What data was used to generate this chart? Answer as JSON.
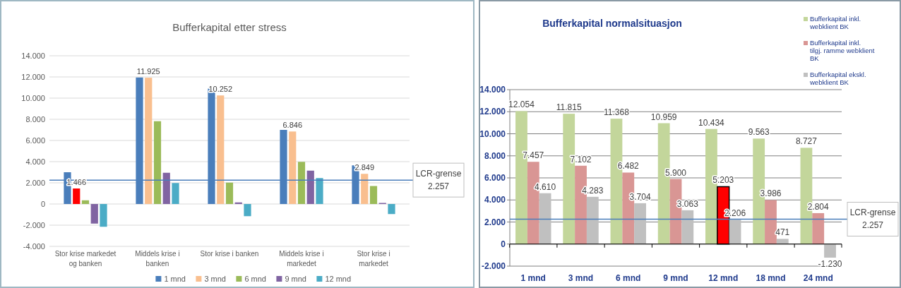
{
  "chart_data": [
    {
      "type": "bar",
      "title": "Bufferkapital etter stress",
      "categories": [
        "Stor krise markedet og banken",
        "Middels krise i banken",
        "Stor krise i banken",
        "Middels krise i markedet",
        "Stor krise i markedet"
      ],
      "series": [
        {
          "name": "1 mnd",
          "color": "#4a7ebb",
          "values": [
            3000,
            11950,
            10900,
            7000,
            3650
          ]
        },
        {
          "name": "3 mnd",
          "color": "#f9bf8f",
          "colors": [
            "#ff0000",
            "#f9bf8f",
            "#f9bf8f",
            "#f9bf8f",
            "#f9bf8f"
          ],
          "values": [
            1466,
            11925,
            10252,
            6846,
            2849
          ],
          "value_labels": [
            "1.466",
            "11.925",
            "10.252",
            "6.846",
            "2.849"
          ]
        },
        {
          "name": "6 mnd",
          "color": "#9bbb59",
          "values": [
            350,
            7820,
            2020,
            3980,
            1700
          ]
        },
        {
          "name": "9 mnd",
          "color": "#8064a2",
          "values": [
            -1850,
            2950,
            150,
            3150,
            100
          ]
        },
        {
          "name": "12 mnd",
          "color": "#4bacc6",
          "values": [
            -2150,
            1980,
            -1150,
            2450,
            -950
          ]
        }
      ],
      "ylim": [
        -4000,
        14000
      ],
      "yticks": [
        {
          "value": -4000,
          "label": "-4.000"
        },
        {
          "value": -2000,
          "label": "-2.000"
        },
        0,
        {
          "value": 2000,
          "label": "2.000"
        },
        {
          "value": 4000,
          "label": "4.000"
        },
        {
          "value": 6000,
          "label": "6.000"
        },
        {
          "value": 8000,
          "label": "8.000"
        },
        {
          "value": 10000,
          "label": "10.000"
        },
        {
          "value": 12000,
          "label": "12.000"
        },
        {
          "value": 14000,
          "label": "14.000"
        }
      ],
      "grid": "y",
      "legend": "bottom",
      "ref_lines": [
        {
          "axis": "y",
          "value": 2257,
          "label": "LCR-grense 2.257",
          "color": "#4a7ebb"
        }
      ]
    },
    {
      "type": "bar",
      "title": "Bufferkapital normalsituasjon",
      "categories": [
        "1 mnd",
        "3 mnd",
        "6 mnd",
        "9 mnd",
        "12 mnd",
        "18 mnd",
        "24 mnd"
      ],
      "series": [
        {
          "name": "Bufferkapital inkl. webklient BK",
          "color": "#c3d69b",
          "values": [
            12054,
            11815,
            11368,
            10959,
            10434,
            9563,
            8727
          ],
          "value_labels": [
            "12.054",
            "11.815",
            "11.368",
            "10.959",
            "10.434",
            "9.563",
            "8.727"
          ]
        },
        {
          "name": "Bufferkapital inkl. tilgj. ramme webklient BK",
          "color": "#d99694",
          "colors": [
            "#d99694",
            "#d99694",
            "#d99694",
            "#d99694",
            "#ff0000",
            "#d99694",
            "#d99694"
          ],
          "values": [
            7457,
            7102,
            6482,
            5900,
            5203,
            3986,
            2804
          ],
          "value_labels": [
            "7.457",
            "7.102",
            "6.482",
            "5.900",
            "5.203",
            "3.986",
            "2.804"
          ]
        },
        {
          "name": "Bufferkapital ekskl. webklient BK",
          "color": "#c0c0c0",
          "values": [
            4610,
            4283,
            3704,
            3063,
            2206,
            471,
            -1230
          ],
          "value_labels": [
            "4.610",
            "4.283",
            "3.704",
            "3.063",
            "2.206",
            "471",
            "-1.230"
          ]
        }
      ],
      "ylim": [
        -2000,
        14000
      ],
      "yticks": [
        {
          "value": -2000,
          "label": "-2.000"
        },
        0,
        {
          "value": 2000,
          "label": "2.000"
        },
        {
          "value": 4000,
          "label": "4.000"
        },
        {
          "value": 6000,
          "label": "6.000"
        },
        {
          "value": 8000,
          "label": "8.000"
        },
        {
          "value": 10000,
          "label": "10.000"
        },
        {
          "value": 12000,
          "label": "12.000"
        },
        {
          "value": 14000,
          "label": "14.000"
        }
      ],
      "grid": "y",
      "legend": "top right",
      "ref_lines": [
        {
          "axis": "y",
          "value": 2257,
          "label": "LCR-grense 2.257",
          "color": "#4a7ebb"
        }
      ]
    }
  ]
}
